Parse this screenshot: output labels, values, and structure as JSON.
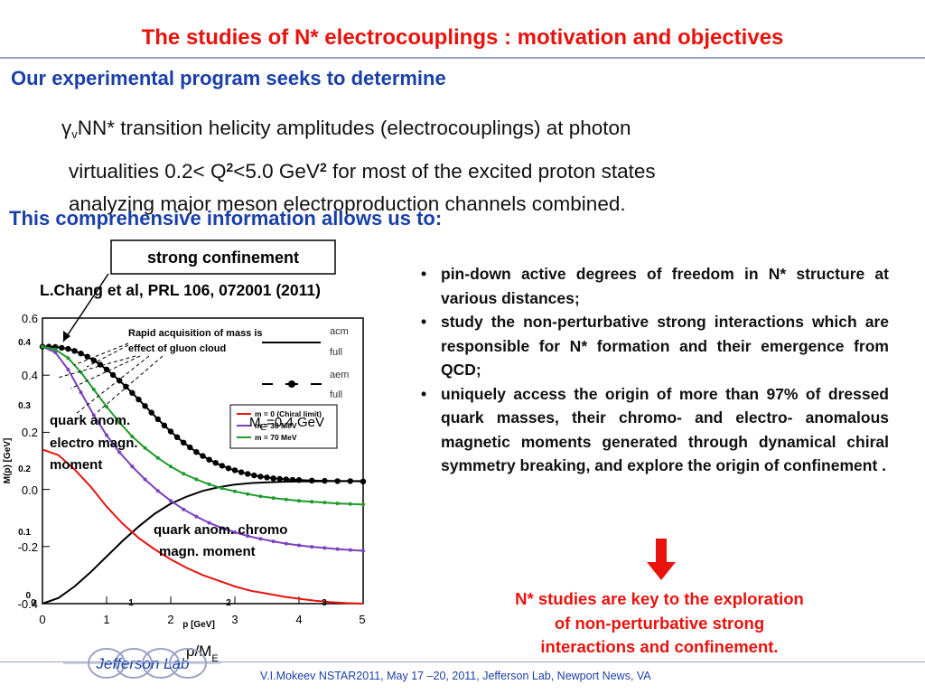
{
  "slide": {
    "title": "The studies of N* electrocouplings : motivation and objectives",
    "heading1": "Our experimental program seeks to determine",
    "intro": {
      "gamma_symbol": "γ",
      "gamma_sub": "v",
      "line1_text": "NN* transition helicity amplitudes (electrocouplings) at photon",
      "line2_a": "virtualities  0.2< Q",
      "sup1": "2",
      "line2_b": "<5.0 GeV",
      "sup2": "2",
      "line2_c": " for most of the excited proton states",
      "line3": "analyzing major meson electroproduction channels combined."
    },
    "heading2": "This comprehensive information  allows us to:",
    "bullets": [
      "pin-down active degrees of freedom in N* structure at various distances;",
      "study the non-perturbative strong interactions which are responsible for  N* formation and their emergence from QCD;",
      "uniquely access the origin of more than 97% of dressed quark masses, their chromo- and electro- anomalous magnetic moments generated through dynamical chiral symmetry breaking, and explore the origin of confinement ."
    ],
    "conclusion": [
      "N* studies are key to the exploration",
      "of non-perturbative strong",
      "interactions and confinement."
    ],
    "footer": "V.I.Mokeev   NSTAR2011, May  17 –20, 2011, Jefferson Lab, Newport News, VA",
    "logo_text": "Jefferson Lab",
    "colors": {
      "title": "#e8130d",
      "heading": "#1a3fa8",
      "arrow": "#e8130d"
    }
  },
  "chart_data": {
    "type": "line",
    "annotations": {
      "strong_confinement": "strong  confinement",
      "reference": "L.Chang et al, PRL 106, 072001 (2011)",
      "gluon_note_1": "Rapid acquisition of mass is",
      "gluon_note_2": "effect of gluon cloud",
      "quark_electro_1": "quark anom.",
      "quark_electro_2": "electro magn.",
      "quark_electro_3": "moment",
      "quark_chromo_1": "quark anom. chromo",
      "quark_chromo_2": "magn. moment",
      "me_label": "M",
      "me_label_sub": "E",
      "me_label_value": "=0.4 GeV"
    },
    "xlabel_inner": "p [GeV]",
    "xlabel_outer": "p/M",
    "xlabel_outer_sub": "E",
    "ylabel_inner": "M(p) [GeV]",
    "outer_x_ticks": [
      "0",
      "1",
      "2",
      "3",
      "4",
      "5"
    ],
    "outer_y_ticks": [
      "0.6",
      "0.4",
      "0.2",
      "0.0",
      "-0.2",
      "-0.4"
    ],
    "inner_x_ticks": [
      "0",
      "1",
      "2",
      "3"
    ],
    "inner_y_ticks": [
      "0.4",
      "0.3",
      "0.2",
      "0.1",
      "0"
    ],
    "legend_top": [
      "acm",
      "full",
      "aem",
      "full"
    ],
    "legend_inset": [
      "m = 0 (Chiral limit)",
      "m = 30 MeV",
      "m = 70 MeV"
    ],
    "xlim": [
      0,
      5
    ],
    "ylim": [
      -0.4,
      0.6
    ],
    "series": [
      {
        "name": "acm full",
        "color": "#000000",
        "marker": "dot",
        "x": [
          0.0,
          0.1,
          0.2,
          0.3,
          0.4,
          0.5,
          0.6,
          0.7,
          0.8,
          0.9,
          1.0,
          1.1,
          1.2,
          1.3,
          1.4,
          1.5,
          1.6,
          1.7,
          1.8,
          1.9,
          2.0,
          2.1,
          2.2,
          2.3,
          2.4,
          2.5,
          2.6,
          2.7,
          2.8,
          2.9,
          3.0,
          3.1,
          3.2,
          3.3,
          3.4,
          3.5,
          3.6,
          3.7,
          3.8,
          3.9,
          4.0,
          4.2,
          4.4,
          4.6,
          4.8,
          5.0
        ],
        "y": [
          0.5,
          0.5,
          0.499,
          0.496,
          0.492,
          0.485,
          0.476,
          0.465,
          0.452,
          0.437,
          0.42,
          0.401,
          0.381,
          0.36,
          0.338,
          0.315,
          0.292,
          0.269,
          0.246,
          0.224,
          0.203,
          0.183,
          0.164,
          0.147,
          0.131,
          0.117,
          0.104,
          0.093,
          0.083,
          0.074,
          0.067,
          0.06,
          0.054,
          0.049,
          0.045,
          0.042,
          0.039,
          0.037,
          0.035,
          0.034,
          0.033,
          0.031,
          0.03,
          0.029,
          0.029,
          0.028
        ]
      },
      {
        "name": "aem full",
        "color": "#000000",
        "marker": "none",
        "x": [
          0.0,
          0.25,
          0.5,
          0.75,
          1.0,
          1.25,
          1.5,
          1.75,
          2.0,
          2.25,
          2.5,
          2.75,
          3.0,
          3.25,
          3.5,
          3.75,
          4.0,
          4.25,
          4.5,
          4.75,
          5.0
        ],
        "y": [
          -0.4,
          -0.38,
          -0.34,
          -0.29,
          -0.235,
          -0.18,
          -0.13,
          -0.085,
          -0.05,
          -0.025,
          -0.005,
          0.008,
          0.017,
          0.022,
          0.025,
          0.027,
          0.028,
          0.028,
          0.029,
          0.029,
          0.029
        ]
      },
      {
        "name": "m = 0 (Chiral limit)",
        "color": "#e8130d",
        "marker": "none",
        "x": [
          0.0,
          0.25,
          0.5,
          0.75,
          1.0,
          1.25,
          1.5,
          1.75,
          2.0,
          2.25,
          2.5,
          2.75,
          3.0,
          3.25,
          3.5,
          3.75,
          4.0,
          4.25,
          4.5,
          4.75,
          5.0
        ],
        "y": [
          0.14,
          0.12,
          0.07,
          0.01,
          -0.06,
          -0.12,
          -0.17,
          -0.21,
          -0.245,
          -0.275,
          -0.3,
          -0.32,
          -0.34,
          -0.355,
          -0.365,
          -0.375,
          -0.383,
          -0.39,
          -0.395,
          -0.398,
          -0.4
        ]
      },
      {
        "name": "m = 30 MeV",
        "color": "#7a3fc0",
        "marker": "dot",
        "x": [
          0.0,
          0.2,
          0.4,
          0.6,
          0.8,
          1.0,
          1.2,
          1.4,
          1.6,
          1.8,
          2.0,
          2.2,
          2.4,
          2.6,
          2.8,
          3.0,
          3.2,
          3.4,
          3.6,
          3.8,
          4.0,
          4.2,
          4.4,
          4.6,
          4.8,
          5.0
        ],
        "y": [
          0.5,
          0.48,
          0.42,
          0.34,
          0.26,
          0.19,
          0.13,
          0.08,
          0.035,
          -0.005,
          -0.04,
          -0.07,
          -0.095,
          -0.117,
          -0.135,
          -0.15,
          -0.163,
          -0.173,
          -0.182,
          -0.19,
          -0.196,
          -0.201,
          -0.205,
          -0.209,
          -0.212,
          -0.215
        ]
      },
      {
        "name": "m = 70 MeV",
        "color": "#1f9a2c",
        "marker": "dot",
        "x": [
          0.0,
          0.2,
          0.4,
          0.6,
          0.8,
          1.0,
          1.2,
          1.4,
          1.6,
          1.8,
          2.0,
          2.2,
          2.4,
          2.6,
          2.8,
          3.0,
          3.2,
          3.4,
          3.6,
          3.8,
          4.0,
          4.2,
          4.4,
          4.6,
          4.8,
          5.0
        ],
        "y": [
          0.5,
          0.49,
          0.46,
          0.41,
          0.35,
          0.29,
          0.235,
          0.185,
          0.145,
          0.11,
          0.08,
          0.055,
          0.035,
          0.018,
          0.004,
          -0.007,
          -0.016,
          -0.024,
          -0.03,
          -0.035,
          -0.04,
          -0.043,
          -0.046,
          -0.049,
          -0.051,
          -0.053
        ]
      }
    ]
  }
}
